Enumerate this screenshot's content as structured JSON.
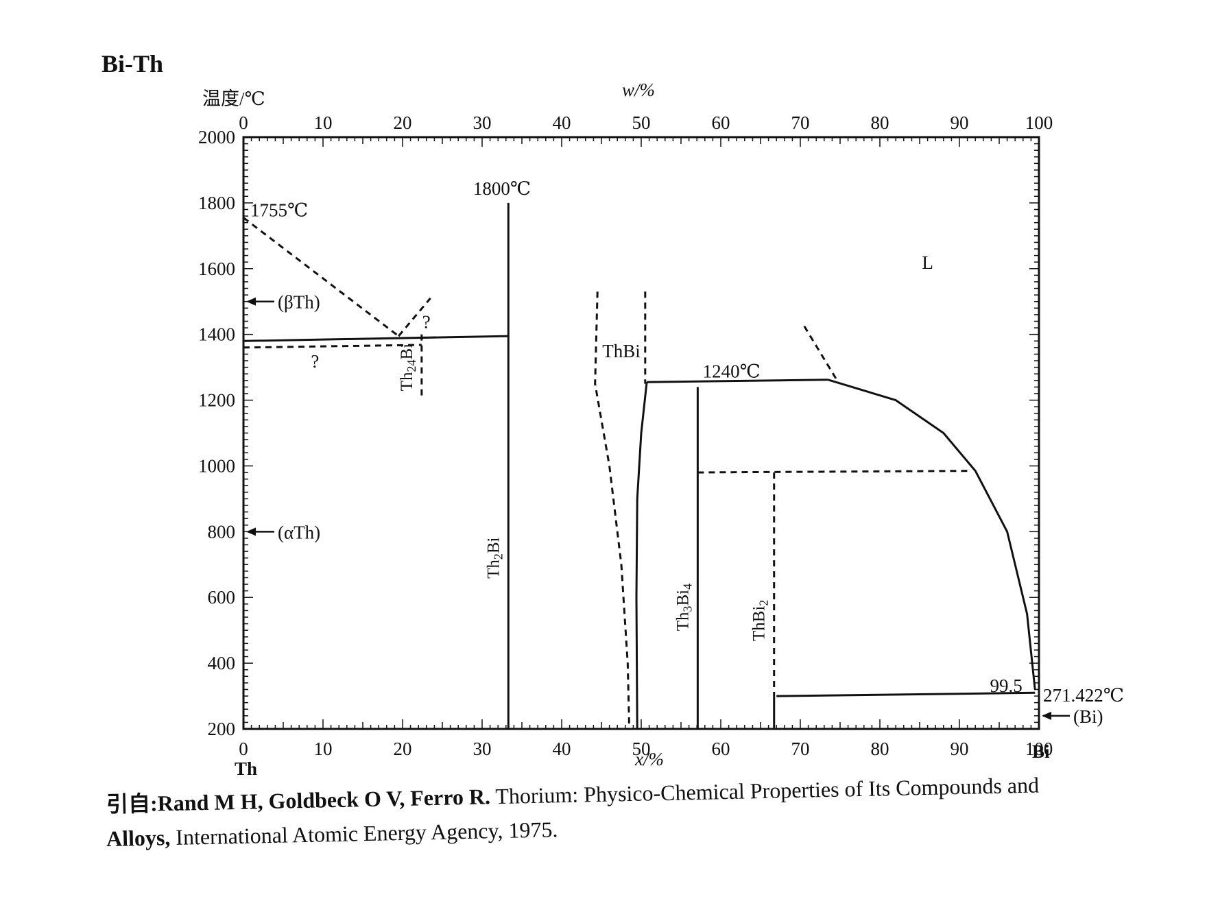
{
  "title": "Bi-Th",
  "y_axis_label": "温度/℃",
  "top_axis_label": "w/%",
  "bottom_axis_label": "x/%",
  "left_end_label": "Th",
  "right_end_label": "Bi",
  "citation": {
    "prefix": "引自:",
    "authors": "Rand M H, Goldbeck O V, Ferro R.",
    "text_1": " Thorium: Physico-Chemical Properties of Its Compounds and",
    "bold_2": "Alloys,",
    "text_2": " International Atomic Energy Agency, 1975."
  },
  "colors": {
    "line": "#111111",
    "background": "#ffffff"
  },
  "chart_data": {
    "type": "phase-diagram",
    "title": "Bi-Th",
    "xlabel": "x/%",
    "x2label": "w/%",
    "ylabel": "温度/℃",
    "xlim": [
      0,
      100
    ],
    "ylim": [
      200,
      2000
    ],
    "y_ticks": [
      200,
      400,
      600,
      800,
      1000,
      1200,
      1400,
      1600,
      1800,
      2000
    ],
    "x_ticks": [
      0,
      10,
      20,
      30,
      40,
      50,
      60,
      70,
      80,
      90,
      100
    ],
    "x2_ticks": [
      0,
      10,
      20,
      30,
      40,
      50,
      60,
      70,
      80,
      90,
      100
    ],
    "annotations": [
      {
        "text": "1755℃",
        "x": 0,
        "y": 1755
      },
      {
        "text": "1800℃",
        "x": 32.5,
        "y": 1800
      },
      {
        "text": "1240℃",
        "x": 56,
        "y": 1240
      },
      {
        "text": "L",
        "x": 86,
        "y": 1600
      },
      {
        "text": "(βTh)",
        "x": 0,
        "y": 1500
      },
      {
        "text": "(αTh)",
        "x": 0,
        "y": 800
      },
      {
        "text": "ThBi",
        "x": 47.5,
        "y": 1330
      },
      {
        "text": "?",
        "x": 9,
        "y": 1320
      },
      {
        "text": "?",
        "x": 23,
        "y": 1440
      },
      {
        "text": "99.5",
        "x": 98.6,
        "y": 300
      },
      {
        "text": "271.422℃",
        "x": 100,
        "y": 271
      },
      {
        "text": "(Bi)",
        "x": 100,
        "y": 240
      }
    ],
    "phases": [
      {
        "label": "Th24Bi",
        "x": 22.4,
        "y_top": 1400,
        "y_bottom": 1205,
        "style": "dashed"
      },
      {
        "label": "Th2Bi",
        "x": 33.3,
        "y_top": 1800,
        "y_bottom": 200,
        "style": "solid"
      },
      {
        "label": "Th3Bi4",
        "x": 57.1,
        "y_top": 1240,
        "y_bottom": 200,
        "style": "solid"
      },
      {
        "label": "ThBi2",
        "x": 66.7,
        "y_top": 980,
        "y_bottom": 200,
        "style": "dashed-solid"
      }
    ],
    "lines": [
      {
        "style": "solid",
        "points": [
          [
            0,
            1380
          ],
          [
            33.3,
            1395
          ]
        ]
      },
      {
        "style": "dashed",
        "points": [
          [
            0,
            1360
          ],
          [
            22.4,
            1368
          ]
        ]
      },
      {
        "style": "dashed",
        "points": [
          [
            0,
            1755
          ],
          [
            19.5,
            1395
          ]
        ]
      },
      {
        "style": "dashed",
        "points": [
          [
            19.5,
            1395
          ],
          [
            23.5,
            1510
          ]
        ]
      },
      {
        "style": "solid",
        "points": [
          [
            50.7,
            1255
          ],
          [
            73.5,
            1262
          ]
        ]
      },
      {
        "style": "dashed",
        "points": [
          [
            57.1,
            980
          ],
          [
            91.5,
            985
          ]
        ]
      },
      {
        "style": "dashed",
        "points": [
          [
            70.5,
            1425
          ],
          [
            74.5,
            1265
          ]
        ]
      },
      {
        "style": "solid",
        "points": [
          [
            67,
            300
          ],
          [
            99.5,
            310
          ]
        ]
      },
      {
        "style": "solid",
        "points": [
          [
            73.5,
            1262
          ],
          [
            82,
            1200
          ],
          [
            88,
            1100
          ],
          [
            92,
            985
          ],
          [
            96,
            800
          ],
          [
            98.5,
            550
          ],
          [
            99.5,
            320
          ]
        ]
      },
      {
        "style": "dashed",
        "points": [
          [
            44.5,
            1530
          ],
          [
            44.2,
            1250
          ],
          [
            46,
            1000
          ],
          [
            47.5,
            700
          ],
          [
            48.3,
            400
          ],
          [
            48.5,
            200
          ]
        ]
      },
      {
        "style": "dashed",
        "points": [
          [
            50.5,
            1530
          ],
          [
            50.5,
            1250
          ]
        ]
      },
      {
        "style": "solid",
        "points": [
          [
            50.7,
            1255
          ],
          [
            50,
            1100
          ],
          [
            49.5,
            900
          ],
          [
            49.4,
            600
          ],
          [
            49.5,
            200
          ]
        ]
      }
    ]
  }
}
